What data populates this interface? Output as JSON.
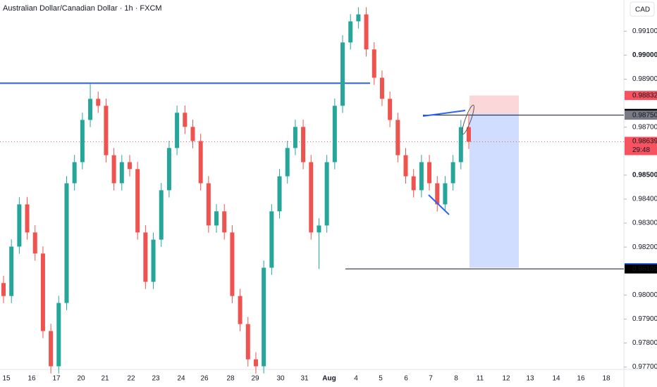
{
  "chart_data": {
    "type": "candlestick",
    "title": "Australian Dollar/Canadian Dollar · 1h · FXCM",
    "currency": "CAD",
    "candles": {
      "open": [
        0.9805,
        0.97996,
        0.98202,
        0.98378,
        0.98261,
        0.98173,
        0.9785,
        0.97703,
        0.97967,
        0.98466,
        0.98554,
        0.9873,
        0.98818,
        0.98789,
        0.98583,
        0.98466,
        0.98554,
        0.98525,
        0.98261,
        0.98055,
        0.98231,
        0.98437,
        0.98613,
        0.9876,
        0.98701,
        0.98642,
        0.98466,
        0.9829,
        0.98349,
        0.98261,
        0.97996,
        0.97879,
        0.97732,
        0.97703,
        0.98114,
        0.98349,
        0.98495,
        0.98613,
        0.98701,
        0.98554,
        0.98261,
        0.9829,
        0.98554,
        0.98789,
        0.99053,
        0.99141,
        0.9917,
        0.99024,
        0.98906,
        0.98818,
        0.9873,
        0.98583,
        0.98495,
        0.98437,
        0.98554,
        0.98466,
        0.98378,
        0.98466,
        0.98554,
        0.987
      ],
      "high": [
        0.9808,
        0.98232,
        0.98408,
        0.98408,
        0.98291,
        0.98203,
        0.9788,
        0.97997,
        0.98496,
        0.98584,
        0.9876,
        0.9888,
        0.98848,
        0.98819,
        0.98613,
        0.98584,
        0.98584,
        0.98555,
        0.98291,
        0.98261,
        0.98467,
        0.98643,
        0.9879,
        0.9879,
        0.98731,
        0.98672,
        0.98496,
        0.98379,
        0.98379,
        0.98291,
        0.98026,
        0.97909,
        0.97762,
        0.98144,
        0.98379,
        0.98525,
        0.98643,
        0.98731,
        0.98731,
        0.98584,
        0.9832,
        0.98584,
        0.98819,
        0.99083,
        0.99171,
        0.992,
        0.992,
        0.99054,
        0.98936,
        0.98848,
        0.9876,
        0.98613,
        0.98525,
        0.98584,
        0.98584,
        0.98496,
        0.98496,
        0.98584,
        0.9873,
        0.98757
      ],
      "low": [
        0.97966,
        0.97966,
        0.98172,
        0.98231,
        0.98143,
        0.9782,
        0.97673,
        0.97673,
        0.97937,
        0.98436,
        0.98524,
        0.987,
        0.98759,
        0.98553,
        0.98436,
        0.98436,
        0.98495,
        0.98231,
        0.98025,
        0.98025,
        0.98201,
        0.98407,
        0.98583,
        0.98671,
        0.98612,
        0.98436,
        0.9826,
        0.9826,
        0.98231,
        0.97966,
        0.97849,
        0.97702,
        0.97673,
        0.97673,
        0.98084,
        0.98319,
        0.98465,
        0.98583,
        0.98524,
        0.98231,
        0.98109,
        0.9826,
        0.98524,
        0.98759,
        0.99023,
        0.99111,
        0.98994,
        0.98876,
        0.98788,
        0.987,
        0.98553,
        0.98465,
        0.98407,
        0.98407,
        0.98436,
        0.98348,
        0.98348,
        0.98436,
        0.98524,
        0.98609
      ],
      "close": [
        0.97996,
        0.98202,
        0.98378,
        0.98261,
        0.98173,
        0.9785,
        0.97703,
        0.97967,
        0.98466,
        0.98554,
        0.9873,
        0.98818,
        0.98789,
        0.98583,
        0.98466,
        0.98554,
        0.98525,
        0.98261,
        0.98055,
        0.98231,
        0.98437,
        0.98613,
        0.9876,
        0.98701,
        0.98642,
        0.98466,
        0.9829,
        0.98349,
        0.98261,
        0.97996,
        0.97879,
        0.97732,
        0.97703,
        0.98114,
        0.98349,
        0.98495,
        0.98613,
        0.98701,
        0.98554,
        0.98261,
        0.9829,
        0.98554,
        0.98789,
        0.99053,
        0.99141,
        0.9917,
        0.99024,
        0.98906,
        0.98818,
        0.9873,
        0.98583,
        0.98495,
        0.98437,
        0.98554,
        0.98466,
        0.98378,
        0.98466,
        0.98554,
        0.987,
        0.98639
      ]
    },
    "up_color": "#26a69a",
    "down_color": "#ef5350",
    "ylim": [
      0.9769,
      0.9923
    ],
    "yticks": [
      {
        "value": 0.991,
        "label": "0.99100"
      },
      {
        "value": 0.99,
        "label": "0.99000"
      },
      {
        "value": 0.989,
        "label": "0.98900"
      },
      {
        "value": 0.987,
        "label": "0.98700"
      },
      {
        "value": 0.985,
        "label": "0.98500"
      },
      {
        "value": 0.984,
        "label": "0.98400"
      },
      {
        "value": 0.983,
        "label": "0.98300"
      },
      {
        "value": 0.982,
        "label": "0.98200"
      },
      {
        "value": 0.98,
        "label": "0.98000"
      },
      {
        "value": 0.979,
        "label": "0.97900"
      },
      {
        "value": 0.978,
        "label": "0.97800"
      },
      {
        "value": 0.977,
        "label": "0.97700"
      }
    ],
    "xticks": [
      "15",
      "16",
      "17",
      "20",
      "21",
      "22",
      "23",
      "24",
      "26",
      "28",
      "29",
      "30",
      "31",
      "Aug",
      "4",
      "5",
      "6",
      "7",
      "8",
      "11",
      "12",
      "13",
      "14",
      "16",
      "18"
    ],
    "resistance_level": 0.98883,
    "price_tags": [
      {
        "value": 0.98832,
        "color": "#f7525f"
      },
      {
        "value": 0.98757,
        "color": "#000000"
      },
      {
        "value": 0.9875,
        "label": "0.98750",
        "color": "#787b86"
      },
      {
        "value": 0.98639,
        "color": "#f7525f",
        "countdown": "29:48"
      },
      {
        "value": 0.98114,
        "color": "#2962ff"
      },
      {
        "value": 0.98109,
        "color": "#000000"
      }
    ]
  }
}
